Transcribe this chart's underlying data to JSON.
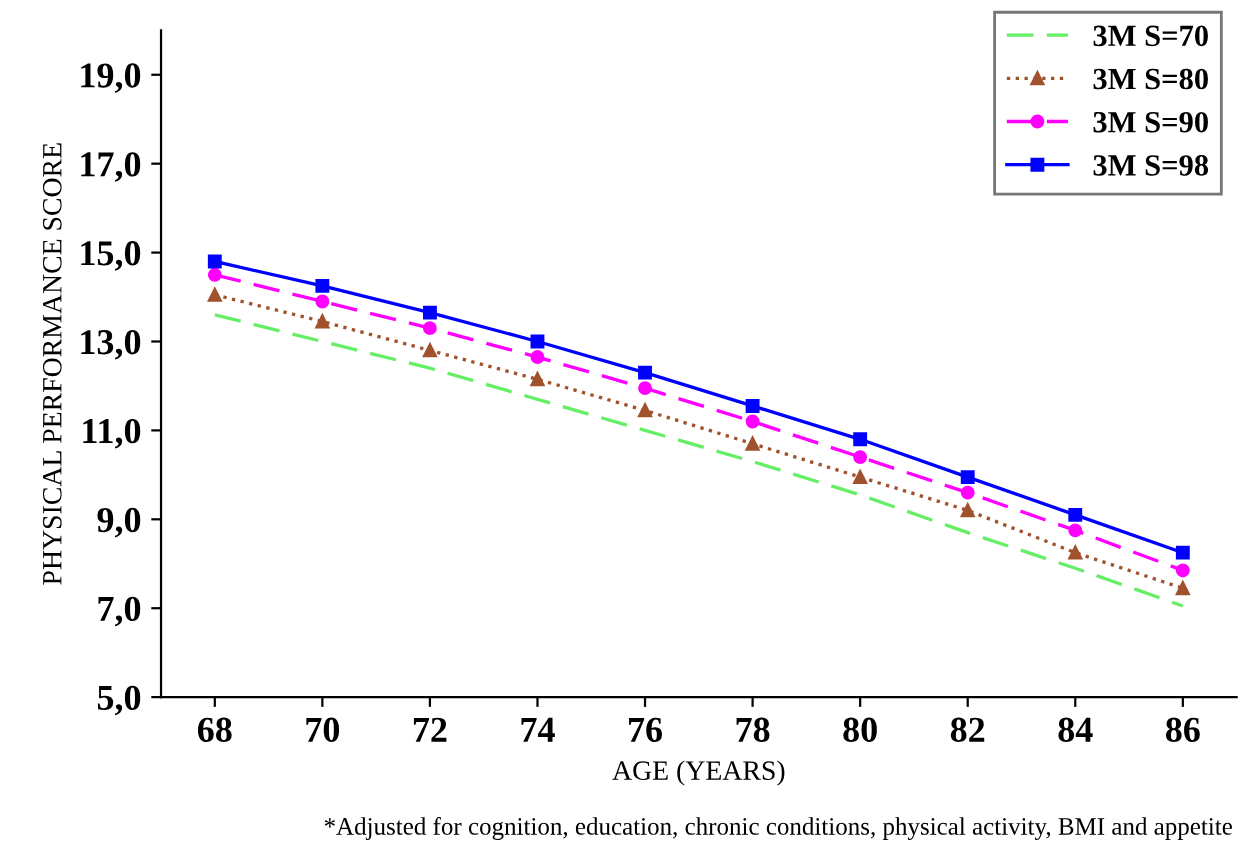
{
  "chart_data": {
    "type": "line",
    "xlabel": "AGE (YEARS)",
    "ylabel": "PHYSICAL PERFORMANCE SCORE",
    "categories": [
      "68",
      "70",
      "72",
      "74",
      "76",
      "78",
      "80",
      "82",
      "84",
      "86"
    ],
    "series": [
      {
        "name": "3M S=70",
        "color": "#66ee66",
        "line_style": "dashed",
        "marker": "none",
        "values": [
          13.6,
          13.0,
          12.4,
          11.7,
          11.0,
          10.3,
          9.55,
          8.7,
          7.9,
          7.05
        ]
      },
      {
        "name": "3M S=80",
        "color": "#a0522d",
        "line_style": "dotted",
        "marker": "triangle",
        "values": [
          14.05,
          13.45,
          12.8,
          12.15,
          11.45,
          10.7,
          9.95,
          9.2,
          8.25,
          7.45
        ]
      },
      {
        "name": "3M S=90",
        "color": "#ff00ff",
        "line_style": "dashed",
        "marker": "circle",
        "values": [
          14.5,
          13.9,
          13.3,
          12.65,
          11.95,
          11.2,
          10.4,
          9.6,
          8.75,
          7.85
        ]
      },
      {
        "name": "3M S=98",
        "color": "#0000ff",
        "line_style": "solid",
        "marker": "square",
        "values": [
          14.8,
          14.25,
          13.65,
          13.0,
          12.3,
          11.55,
          10.8,
          9.95,
          9.1,
          8.25
        ]
      }
    ],
    "ylim": [
      5,
      20
    ],
    "yticks": [
      {
        "value": 5,
        "label": "5,0"
      },
      {
        "value": 7,
        "label": "7,0"
      },
      {
        "value": 9,
        "label": "9,0"
      },
      {
        "value": 11,
        "label": "11,0"
      },
      {
        "value": 13,
        "label": "13,0"
      },
      {
        "value": 15,
        "label": "15,0"
      },
      {
        "value": 17,
        "label": "17,0"
      },
      {
        "value": 19,
        "label": "19,0"
      }
    ],
    "grid": false,
    "legend": "top right",
    "annotations": [
      "*Adjusted for cognition, education, chronic conditions, physical activity, BMI and appetite"
    ]
  }
}
